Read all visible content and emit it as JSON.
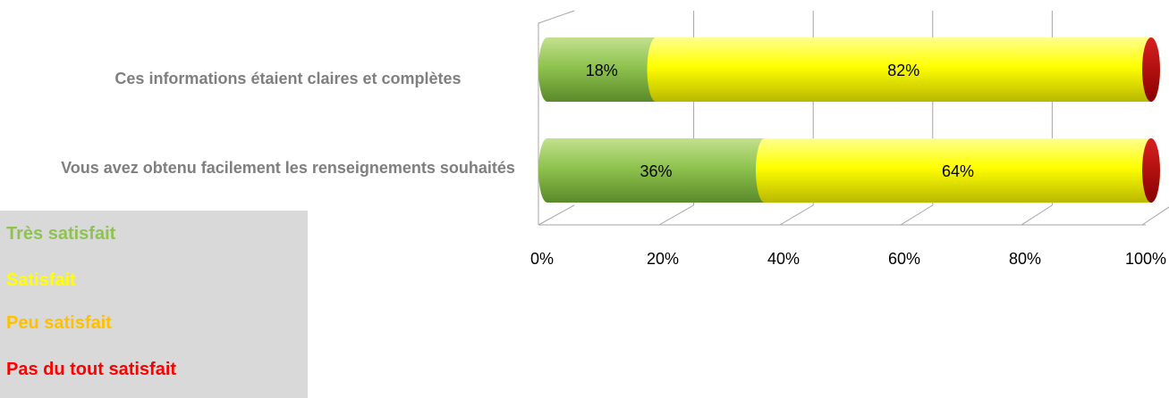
{
  "chart_data": {
    "type": "bar",
    "orientation": "horizontal",
    "stacked": true,
    "percent_stacked": true,
    "style": "3d-cylinder",
    "categories": [
      "Ces informations étaient claires et complètes",
      "Vous avez obtenu facilement les renseignements souhaités"
    ],
    "series": [
      {
        "name": "Très satisfait",
        "color": "#8fc34f",
        "values": [
          18,
          36
        ],
        "labels": [
          "18%",
          "36%"
        ]
      },
      {
        "name": "Satisfait",
        "color": "#ffff00",
        "values": [
          82,
          64
        ],
        "labels": [
          "82%",
          "64%"
        ]
      },
      {
        "name": "Peu satisfait",
        "color": "#ffc000",
        "values": [
          0,
          0
        ],
        "labels": [
          "",
          ""
        ]
      },
      {
        "name": "Pas du tout satisfait",
        "color": "#c00000",
        "values": [
          0,
          0
        ],
        "labels": [
          "",
          ""
        ]
      }
    ],
    "xlim": [
      0,
      100
    ],
    "x_ticks": [
      "0%",
      "20%",
      "40%",
      "60%",
      "80%",
      "100%"
    ],
    "grid": true,
    "legend_position": "bottom-left"
  },
  "legend": {
    "items": [
      {
        "label": "Très satisfait",
        "color": "#8fc34f"
      },
      {
        "label": "Satisfait",
        "color": "#ffff00"
      },
      {
        "label": "Peu satisfait",
        "color": "#ffc000"
      },
      {
        "label": "Pas du tout satisfait",
        "color": "#ff0000"
      }
    ]
  }
}
